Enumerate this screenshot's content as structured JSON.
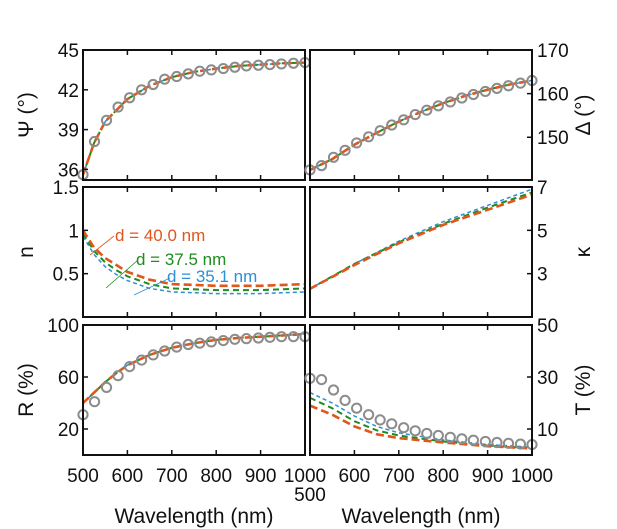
{
  "chart_data": [
    {
      "id": "psi",
      "type": "line+scatter",
      "ylabel": "Ψ (°)",
      "yaxis_side": "left",
      "xlim": [
        500,
        1000
      ],
      "ylim": [
        35.2,
        45
      ],
      "xticks": [
        500,
        600,
        700,
        800,
        900,
        1000
      ],
      "yticks": [
        "36",
        "39",
        "42",
        "45"
      ],
      "measured": {
        "x": [
          500,
          526,
          553,
          579,
          605,
          632,
          658,
          684,
          711,
          737,
          763,
          789,
          816,
          842,
          868,
          895,
          921,
          947,
          974,
          1000
        ],
        "y": [
          35.6,
          38.1,
          39.7,
          40.7,
          41.4,
          42.0,
          42.4,
          42.8,
          43.0,
          43.2,
          43.4,
          43.5,
          43.6,
          43.7,
          43.8,
          43.85,
          43.9,
          43.95,
          44.0,
          44.05
        ]
      },
      "series": [
        {
          "x": [
            500,
            525,
            550,
            600,
            650,
            700,
            750,
            800,
            850,
            900,
            950,
            1000
          ],
          "y": [
            35.6,
            38.0,
            39.6,
            41.3,
            42.3,
            42.95,
            43.35,
            43.6,
            43.8,
            43.9,
            44.0,
            44.05
          ]
        },
        {
          "x": [
            500,
            525,
            550,
            600,
            650,
            700,
            750,
            800,
            850,
            900,
            950,
            1000
          ],
          "y": [
            35.6,
            38.0,
            39.6,
            41.3,
            42.3,
            42.95,
            43.35,
            43.6,
            43.8,
            43.9,
            44.0,
            44.05
          ]
        },
        {
          "x": [
            500,
            525,
            550,
            600,
            650,
            700,
            750,
            800,
            850,
            900,
            950,
            1000
          ],
          "y": [
            35.6,
            38.0,
            39.6,
            41.3,
            42.3,
            42.95,
            43.35,
            43.6,
            43.8,
            43.9,
            44.0,
            44.05
          ]
        }
      ]
    },
    {
      "id": "delta",
      "type": "line+scatter",
      "ylabel": "Δ (°)",
      "yaxis_side": "right",
      "xlim": [
        500,
        1000
      ],
      "ylim": [
        140.2,
        170
      ],
      "xticks": [
        500,
        600,
        700,
        800,
        900,
        1000
      ],
      "yticks": [
        "150",
        "160",
        "170"
      ],
      "measured": {
        "x": [
          500,
          526,
          553,
          579,
          605,
          632,
          658,
          684,
          711,
          737,
          763,
          789,
          816,
          842,
          868,
          895,
          921,
          947,
          974,
          1000
        ],
        "y": [
          142.5,
          143.5,
          145.4,
          147.0,
          148.7,
          150.1,
          151.5,
          152.8,
          154.0,
          155.2,
          156.2,
          157.2,
          158.1,
          159.0,
          159.8,
          160.5,
          161.2,
          161.8,
          162.4,
          163.0
        ]
      },
      "series": [
        {
          "x": [
            500,
            550,
            600,
            650,
            700,
            750,
            800,
            850,
            900,
            950,
            1000
          ],
          "y": [
            142.5,
            145.0,
            148.3,
            151.0,
            153.6,
            155.8,
            157.8,
            159.5,
            160.9,
            162.1,
            163.0
          ]
        },
        {
          "x": [
            500,
            550,
            600,
            650,
            700,
            750,
            800,
            850,
            900,
            950,
            1000
          ],
          "y": [
            142.5,
            145.0,
            148.3,
            151.0,
            153.6,
            155.8,
            157.8,
            159.5,
            160.9,
            162.1,
            163.0
          ]
        },
        {
          "x": [
            500,
            550,
            600,
            650,
            700,
            750,
            800,
            850,
            900,
            950,
            1000
          ],
          "y": [
            142.5,
            145.0,
            148.3,
            151.0,
            153.6,
            155.8,
            157.8,
            159.5,
            160.9,
            162.1,
            163.0
          ]
        }
      ]
    },
    {
      "id": "n",
      "type": "line",
      "ylabel": "n",
      "yaxis_side": "left",
      "xlim": [
        500,
        1000
      ],
      "ylim": [
        0,
        1.5
      ],
      "xticks": [
        500,
        600,
        700,
        800,
        900,
        1000
      ],
      "yticks": [
        "0.5",
        "1",
        "1.5"
      ],
      "series": [
        {
          "name": "d = 40.0 nm",
          "x": [
            500,
            525,
            550,
            575,
            600,
            650,
            700,
            800,
            900,
            1000
          ],
          "y": [
            1.0,
            0.8,
            0.68,
            0.6,
            0.52,
            0.43,
            0.38,
            0.36,
            0.36,
            0.38
          ]
        },
        {
          "name": "d = 37.5 nm",
          "x": [
            500,
            525,
            550,
            575,
            600,
            650,
            700,
            800,
            900,
            1000
          ],
          "y": [
            0.96,
            0.76,
            0.63,
            0.54,
            0.47,
            0.38,
            0.33,
            0.31,
            0.31,
            0.33
          ]
        },
        {
          "name": "d = 35.1 nm",
          "x": [
            500,
            525,
            550,
            575,
            600,
            650,
            700,
            800,
            900,
            1000
          ],
          "y": [
            0.93,
            0.72,
            0.58,
            0.49,
            0.42,
            0.33,
            0.29,
            0.27,
            0.27,
            0.29
          ]
        }
      ]
    },
    {
      "id": "kappa",
      "type": "line",
      "ylabel": "κ",
      "yaxis_side": "right",
      "xlim": [
        500,
        1000
      ],
      "ylim": [
        1,
        7
      ],
      "xticks": [
        500,
        600,
        700,
        800,
        900,
        1000
      ],
      "yticks": [
        "3",
        "5",
        "7"
      ],
      "series": [
        {
          "x": [
            500,
            600,
            700,
            800,
            900,
            1000
          ],
          "y": [
            2.3,
            3.4,
            4.4,
            5.25,
            5.95,
            6.65
          ]
        },
        {
          "x": [
            500,
            600,
            700,
            800,
            900,
            1000
          ],
          "y": [
            2.3,
            3.45,
            4.45,
            5.3,
            6.05,
            6.75
          ]
        },
        {
          "x": [
            500,
            600,
            700,
            800,
            900,
            1000
          ],
          "y": [
            2.3,
            3.45,
            4.5,
            5.4,
            6.15,
            6.9
          ]
        }
      ]
    },
    {
      "id": "R",
      "type": "line+scatter",
      "ylabel": "R (%)",
      "yaxis_side": "left",
      "xlabel": "Wavelength (nm)",
      "xlim": [
        500,
        1000
      ],
      "ylim": [
        0,
        100
      ],
      "xticks": [
        500,
        600,
        700,
        800,
        900,
        1000
      ],
      "xticklabels": [
        "500",
        "600",
        "700",
        "800",
        "900",
        "1000"
      ],
      "yticks": [
        "20",
        "60",
        "100"
      ],
      "measured": {
        "x": [
          500,
          526,
          553,
          579,
          605,
          632,
          658,
          684,
          711,
          737,
          763,
          789,
          816,
          842,
          868,
          895,
          921,
          947,
          974,
          1000
        ],
        "y": [
          31,
          41,
          52,
          61,
          68,
          73,
          77,
          80,
          83,
          85,
          86,
          87,
          88,
          89,
          89.5,
          90,
          90.5,
          91,
          91,
          91
        ]
      },
      "series": [
        {
          "x": [
            500,
            525,
            550,
            575,
            600,
            650,
            700,
            750,
            800,
            850,
            900,
            950,
            1000
          ],
          "y": [
            40,
            48,
            56,
            63,
            69,
            77,
            82.5,
            86,
            88.5,
            90,
            91,
            92,
            93
          ]
        },
        {
          "x": [
            500,
            525,
            550,
            575,
            600,
            650,
            700,
            750,
            800,
            850,
            900,
            950,
            1000
          ],
          "y": [
            40,
            48,
            56,
            63,
            69,
            77,
            82.5,
            86,
            88.5,
            90,
            91,
            92,
            93
          ]
        },
        {
          "x": [
            500,
            525,
            550,
            575,
            600,
            650,
            700,
            750,
            800,
            850,
            900,
            950,
            1000
          ],
          "y": [
            40,
            48,
            56,
            63,
            69,
            77,
            82.5,
            86,
            88.5,
            90,
            91,
            92,
            93
          ]
        }
      ]
    },
    {
      "id": "T",
      "type": "line+scatter",
      "ylabel": "T (%)",
      "yaxis_side": "right",
      "xlabel": "Wavelength (nm)",
      "xlim": [
        500,
        1000
      ],
      "ylim": [
        0,
        50
      ],
      "xticks": [
        500,
        600,
        700,
        800,
        900,
        1000
      ],
      "xticklabels": [
        "500",
        "600",
        "700",
        "800",
        "900",
        "1000"
      ],
      "yticks": [
        "10",
        "30",
        "50"
      ],
      "measured": {
        "x": [
          500,
          526,
          553,
          579,
          605,
          632,
          658,
          684,
          711,
          737,
          763,
          789,
          816,
          842,
          868,
          895,
          921,
          947,
          974,
          1000
        ],
        "y": [
          29.5,
          29,
          25,
          21,
          18,
          15.5,
          13.5,
          12,
          10.5,
          9.3,
          8.3,
          7.5,
          6.8,
          6.2,
          5.7,
          5.2,
          4.8,
          4.5,
          4.2,
          4.0
        ]
      },
      "series": [
        {
          "x": [
            500,
            550,
            600,
            650,
            700,
            800,
            900,
            1000
          ],
          "y": [
            19,
            15.5,
            11,
            8,
            6.5,
            4.8,
            3.4,
            2.5
          ]
        },
        {
          "x": [
            500,
            550,
            600,
            650,
            700,
            800,
            900,
            1000
          ],
          "y": [
            22,
            18,
            13,
            9.5,
            7.5,
            5.2,
            3.6,
            2.7
          ]
        },
        {
          "x": [
            500,
            550,
            600,
            650,
            700,
            800,
            900,
            1000
          ],
          "y": [
            24,
            20,
            15,
            11,
            8.5,
            5.8,
            4.0,
            3.0
          ]
        }
      ]
    }
  ],
  "colors": {
    "d40": "#E0561C",
    "d37": "#1E8C1E",
    "d35": "#2D8FD5",
    "measured": "#8C8C8C"
  }
}
